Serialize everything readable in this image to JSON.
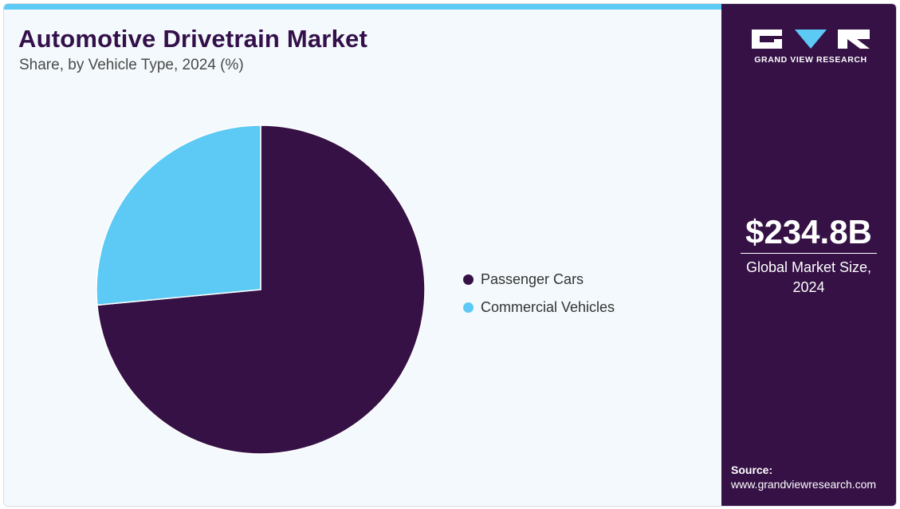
{
  "header": {
    "title": "Automotive Drivetrain Market",
    "subtitle": "Share, by Vehicle Type, 2024 (%)"
  },
  "colors": {
    "passenger_cars": "#351145",
    "commercial_vehicles": "#5ccaf4",
    "accent": "#5ccaf4",
    "side_panel": "#351145"
  },
  "chart_data": {
    "type": "pie",
    "title": "Automotive Drivetrain Market",
    "subtitle": "Share, by Vehicle Type, 2024 (%)",
    "legend_position": "right",
    "series": [
      {
        "name": "Passenger Cars",
        "value": 73.5,
        "color": "#351145"
      },
      {
        "name": "Commercial Vehicles",
        "value": 26.5,
        "color": "#5ccaf4"
      }
    ]
  },
  "sidebar": {
    "brand": "GRAND VIEW RESEARCH",
    "market_value": "$234.8B",
    "market_caption_line1": "Global Market Size,",
    "market_caption_line2": "2024",
    "source_label": "Source:",
    "source_url": "www.grandviewresearch.com"
  }
}
